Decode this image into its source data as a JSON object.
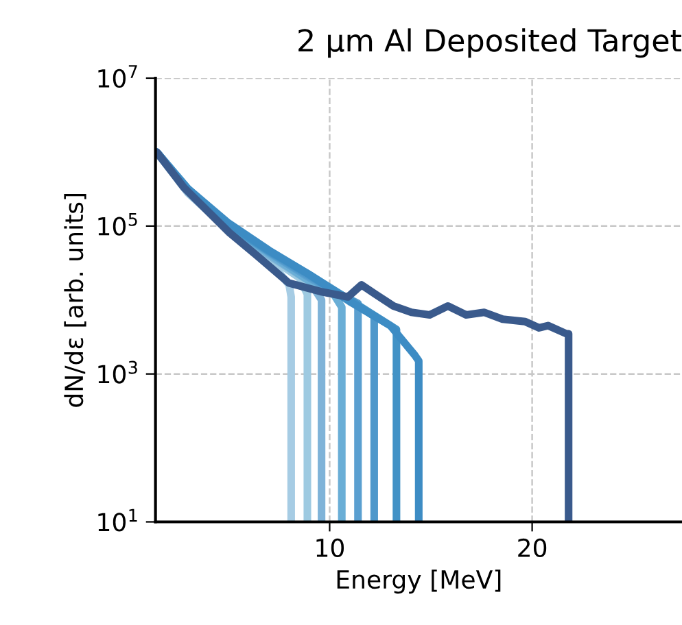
{
  "chart_data": {
    "type": "line",
    "title": "2 μm Al Deposited Target",
    "xlabel": "Energy [MeV]",
    "ylabel": "dN/dε [arb. units]",
    "log": "y",
    "grid": true,
    "marker": "none",
    "line_style": "solid",
    "xlim": [
      1.4,
      27.4
    ],
    "ylim": [
      10,
      10000000
    ],
    "xticks": [
      10,
      20
    ],
    "yticks": [
      {
        "value": 10,
        "label": "10$^{1}$"
      },
      {
        "value": 1000,
        "label": "10$^{3}$"
      },
      {
        "value": 100000,
        "label": "10$^{5}$"
      },
      {
        "value": 10000000,
        "label": "10$^{7}$"
      }
    ],
    "series": [
      {
        "color": "#a6cce4",
        "x": [
          1.46,
          3,
          5,
          7,
          8,
          8.1,
          8.1
        ],
        "values": [
          1000000,
          280000,
          89000,
          35000,
          16000,
          11000,
          10
        ]
      },
      {
        "color": "#9ecae1",
        "x": [
          1.46,
          3,
          5,
          7,
          8.5,
          8.9,
          8.9
        ],
        "values": [
          1000000,
          290000,
          90000,
          38000,
          20000,
          12000,
          10
        ]
      },
      {
        "color": "#7fb3d8",
        "x": [
          1.46,
          3,
          5,
          7,
          9,
          9.6,
          9.6
        ],
        "values": [
          1000000,
          300000,
          95000,
          40000,
          18000,
          10000,
          10
        ]
      },
      {
        "color": "#6aaed6",
        "x": [
          1.46,
          3,
          5,
          7,
          9,
          10.2,
          10.6,
          10.6
        ],
        "values": [
          1000000,
          300000,
          100000,
          42000,
          18000,
          12000,
          8000,
          10
        ]
      },
      {
        "color": "#5a9fd0",
        "x": [
          1.46,
          3,
          5,
          7,
          9,
          10.5,
          11.4,
          11.4
        ],
        "values": [
          1000000,
          310000,
          100000,
          44000,
          20000,
          12000,
          9000,
          10
        ]
      },
      {
        "color": "#4f98cb",
        "x": [
          1.46,
          3,
          5,
          7,
          9,
          11,
          12.2,
          12.2
        ],
        "values": [
          1000000,
          310000,
          105000,
          45000,
          21000,
          10000,
          6000,
          10
        ]
      },
      {
        "color": "#4292c6",
        "x": [
          1.46,
          3,
          5,
          7,
          9,
          11,
          13.3,
          13.3
        ],
        "values": [
          1000000,
          320000,
          105000,
          46000,
          22000,
          10000,
          4000,
          10
        ]
      },
      {
        "color": "#3d8cc4",
        "x": [
          1.46,
          3,
          5,
          7,
          9,
          11,
          13,
          14.2,
          14.4,
          14.4
        ],
        "values": [
          1000000,
          320000,
          110000,
          47000,
          22000,
          9500,
          4500,
          1800,
          1500,
          10
        ]
      },
      {
        "color": "#3a5a8c",
        "x": [
          1.46,
          2.81,
          5.06,
          6.4,
          7.98,
          9.55,
          10.9,
          11.57,
          12.25,
          13.15,
          14.04,
          14.94,
          15.84,
          16.74,
          17.64,
          18.54,
          19.66,
          20.34,
          20.79,
          21.69,
          21.8,
          21.8
        ],
        "values": [
          1000000,
          330000,
          81000,
          40000,
          17000,
          13000,
          11000,
          16000,
          12000,
          8300,
          6800,
          6300,
          8300,
          6300,
          6800,
          5500,
          5100,
          4200,
          4500,
          3500,
          3500,
          10
        ]
      }
    ]
  }
}
